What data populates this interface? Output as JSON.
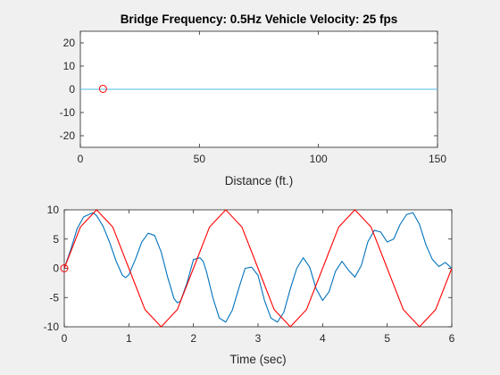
{
  "chart_data": [
    {
      "type": "line",
      "title": "Bridge Frequency: 0.5Hz Vehicle Velocity: 25 fps",
      "xlabel": "Distance (ft.)",
      "ylabel": "",
      "xlim": [
        0,
        150
      ],
      "ylim": [
        -25,
        25
      ],
      "xticks": [
        0,
        50,
        100,
        150
      ],
      "yticks": [
        -20,
        -10,
        0,
        10,
        20
      ],
      "grid": false,
      "series": [
        {
          "color": "#4DBEEE",
          "x": [
            0,
            150
          ],
          "y": [
            0,
            0
          ]
        }
      ],
      "markers": [
        {
          "x": 9.5,
          "y": 0.2,
          "shape": "circle",
          "color": "#FF0000"
        }
      ]
    },
    {
      "type": "line",
      "title": "",
      "xlabel": "Time (sec)",
      "ylabel": "",
      "xlim": [
        0,
        6
      ],
      "ylim": [
        -10,
        10
      ],
      "xticks": [
        0,
        1,
        2,
        3,
        4,
        5,
        6
      ],
      "yticks": [
        -10,
        -5,
        0,
        5,
        10
      ],
      "grid": false,
      "series": [
        {
          "color": "#0072BD",
          "x": [
            0,
            0.1,
            0.2,
            0.3,
            0.4,
            0.45,
            0.5,
            0.6,
            0.7,
            0.8,
            0.9,
            0.95,
            1.0,
            1.1,
            1.2,
            1.3,
            1.4,
            1.5,
            1.6,
            1.7,
            1.75,
            1.8,
            1.9,
            2.0,
            2.1,
            2.15,
            2.2,
            2.3,
            2.4,
            2.5,
            2.6,
            2.7,
            2.8,
            2.9,
            3.0,
            3.1,
            3.2,
            3.3,
            3.4,
            3.5,
            3.6,
            3.7,
            3.8,
            3.9,
            4.0,
            4.1,
            4.2,
            4.3,
            4.4,
            4.5,
            4.6,
            4.7,
            4.8,
            4.9,
            5.0,
            5.1,
            5.2,
            5.3,
            5.4,
            5.5,
            5.6,
            5.7,
            5.8,
            5.9,
            6.0
          ],
          "y": [
            0,
            3.2,
            6.8,
            8.8,
            9.3,
            9.5,
            9.0,
            7.2,
            4.5,
            1.3,
            -1.2,
            -1.6,
            -1.1,
            1.5,
            4.5,
            6.0,
            5.6,
            2.8,
            -1.5,
            -5.2,
            -5.9,
            -5.6,
            -2.5,
            1.5,
            1.8,
            1.2,
            -0.5,
            -5.0,
            -8.5,
            -9.2,
            -7.2,
            -3.5,
            0,
            0.2,
            -1.2,
            -5.5,
            -8.5,
            -9.2,
            -7.5,
            -3.5,
            0,
            1.8,
            0.2,
            -3.5,
            -5.5,
            -4.0,
            -0.5,
            1.2,
            -0.3,
            -1.5,
            0.5,
            4.5,
            6.5,
            6.2,
            4.5,
            5.0,
            7.5,
            9.2,
            9.5,
            7.5,
            4.0,
            1.5,
            0.3,
            1.0,
            0
          ]
        },
        {
          "color": "#FF0000",
          "x": [
            0,
            0.25,
            0.5,
            0.75,
            1.0,
            1.25,
            1.5,
            1.75,
            2.0,
            2.25,
            2.5,
            2.75,
            3.0,
            3.25,
            3.5,
            3.75,
            4.0,
            4.25,
            4.5,
            4.75,
            5.0,
            5.25,
            5.5,
            5.75,
            6.0
          ],
          "y": [
            0,
            7.07,
            10,
            7.07,
            0,
            -7.07,
            -10,
            -7.07,
            0,
            7.07,
            10,
            7.07,
            0,
            -7.07,
            -10,
            -7.07,
            0,
            7.07,
            10,
            7.07,
            0,
            -7.07,
            -10,
            -7.07,
            0
          ]
        }
      ],
      "markers": [
        {
          "x": 0,
          "y": 0,
          "shape": "circle",
          "color": "#FF0000"
        }
      ]
    }
  ]
}
